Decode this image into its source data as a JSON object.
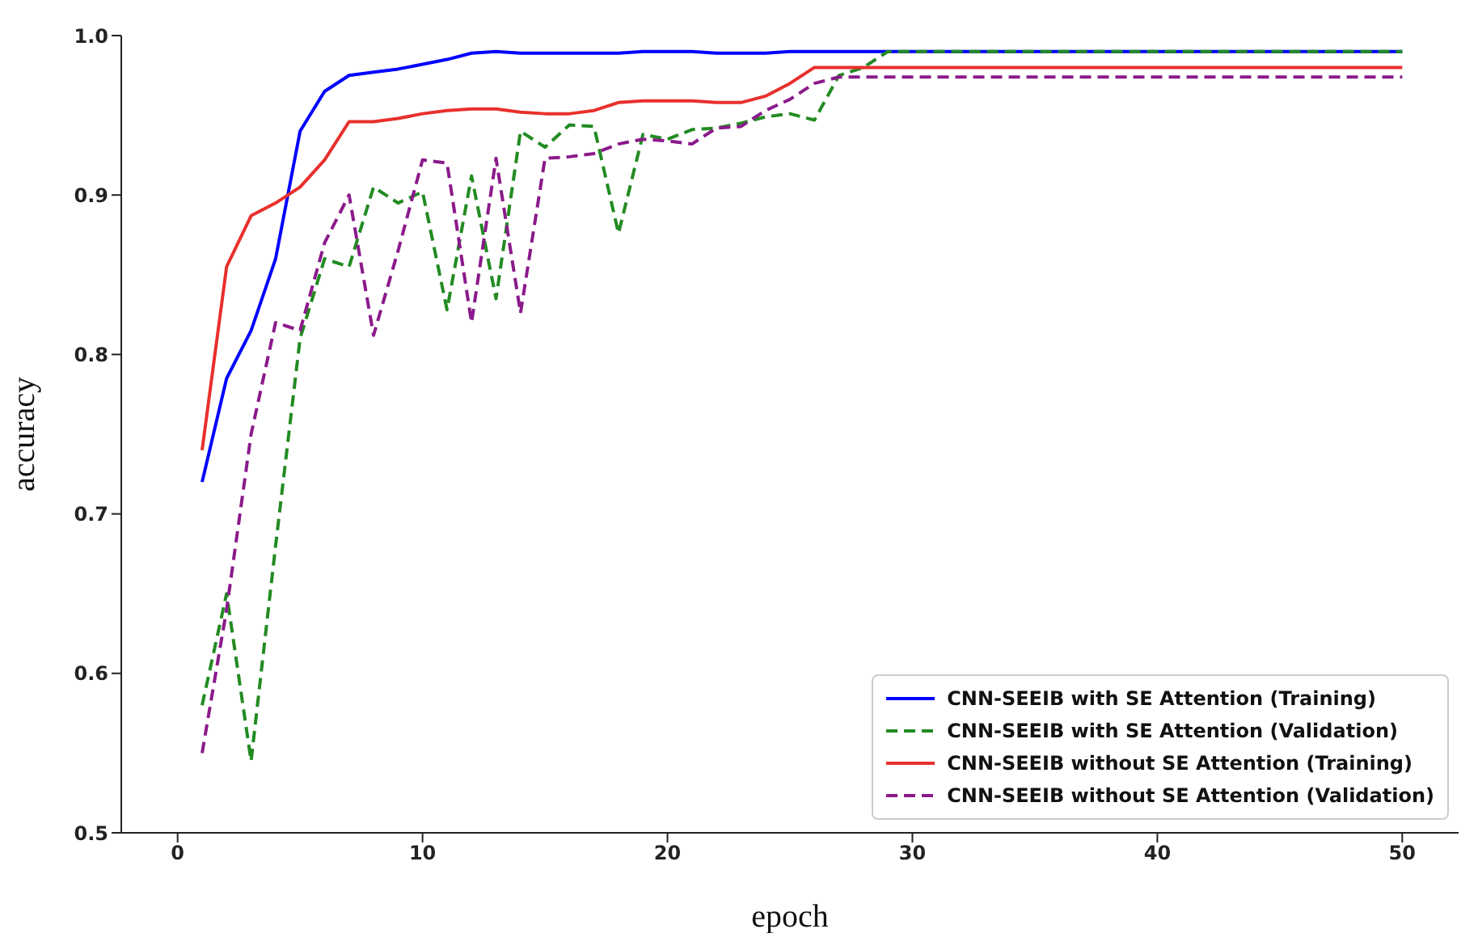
{
  "chart_data": {
    "type": "line",
    "xlabel": "epoch",
    "ylabel": "accuracy",
    "x": [
      1,
      2,
      3,
      4,
      5,
      6,
      7,
      8,
      9,
      10,
      11,
      12,
      13,
      14,
      15,
      16,
      17,
      18,
      19,
      20,
      21,
      22,
      23,
      24,
      25,
      26,
      27,
      28,
      29,
      30,
      31,
      32,
      33,
      34,
      35,
      36,
      37,
      38,
      39,
      40,
      41,
      42,
      43,
      44,
      45,
      46,
      47,
      48,
      49,
      50
    ],
    "xlim": [
      -2.3,
      52.3
    ],
    "xticks": [
      0,
      10,
      20,
      30,
      40,
      50
    ],
    "ylim": [
      0.5,
      1.0
    ],
    "yticks": [
      0.5,
      0.6,
      0.7,
      0.8,
      0.9,
      {
        "value": 1,
        "label": "1.0"
      }
    ],
    "grid": false,
    "legend": "bottom right",
    "marker": "none",
    "series": [
      {
        "name": "CNN-SEEIB with SE Attention (Training)",
        "color": "#0000ff",
        "line_style": "solid",
        "values": [
          0.72,
          0.785,
          0.815,
          0.86,
          0.94,
          0.965,
          0.975,
          0.977,
          0.979,
          0.982,
          0.985,
          0.989,
          0.99,
          0.989,
          0.989,
          0.989,
          0.989,
          0.989,
          0.99,
          0.99,
          0.99,
          0.989,
          0.989,
          0.989,
          0.99,
          0.99,
          0.99,
          0.99,
          0.99,
          0.99,
          0.99,
          0.99,
          0.99,
          0.99,
          0.99,
          0.99,
          0.99,
          0.99,
          0.99,
          0.99,
          0.99,
          0.99,
          0.99,
          0.99,
          0.99,
          0.99,
          0.99,
          0.99,
          0.99,
          0.99
        ]
      },
      {
        "name": "CNN-SEEIB with SE Attention (Validation)",
        "color": "#228b22",
        "line_style": "dashed",
        "values": [
          0.58,
          0.65,
          0.545,
          0.68,
          0.81,
          0.86,
          0.855,
          0.905,
          0.895,
          0.902,
          0.828,
          0.912,
          0.835,
          0.94,
          0.93,
          0.944,
          0.943,
          0.876,
          0.938,
          0.935,
          0.941,
          0.942,
          0.945,
          0.949,
          0.951,
          0.947,
          0.975,
          0.98,
          0.99,
          0.99,
          0.99,
          0.99,
          0.99,
          0.99,
          0.99,
          0.99,
          0.99,
          0.99,
          0.99,
          0.99,
          0.99,
          0.99,
          0.99,
          0.99,
          0.99,
          0.99,
          0.99,
          0.99,
          0.99,
          0.99
        ]
      },
      {
        "name": "CNN-SEEIB without SE Attention (Training)",
        "color": "#e8302c",
        "line_style": "solid",
        "values": [
          0.74,
          0.855,
          0.887,
          0.895,
          0.905,
          0.922,
          0.946,
          0.946,
          0.948,
          0.951,
          0.953,
          0.954,
          0.954,
          0.952,
          0.951,
          0.951,
          0.953,
          0.958,
          0.959,
          0.959,
          0.959,
          0.958,
          0.958,
          0.962,
          0.97,
          0.98,
          0.98,
          0.98,
          0.98,
          0.98,
          0.98,
          0.98,
          0.98,
          0.98,
          0.98,
          0.98,
          0.98,
          0.98,
          0.98,
          0.98,
          0.98,
          0.98,
          0.98,
          0.98,
          0.98,
          0.98,
          0.98,
          0.98,
          0.98,
          0.98
        ]
      },
      {
        "name": "CNN-SEEIB without SE Attention (Validation)",
        "color": "#8b1a8b",
        "line_style": "dashed",
        "values": [
          0.55,
          0.64,
          0.75,
          0.82,
          0.815,
          0.87,
          0.9,
          0.812,
          0.865,
          0.922,
          0.92,
          0.82,
          0.923,
          0.826,
          0.923,
          0.924,
          0.926,
          0.932,
          0.935,
          0.934,
          0.932,
          0.942,
          0.943,
          0.953,
          0.96,
          0.97,
          0.974,
          0.974,
          0.974,
          0.974,
          0.974,
          0.974,
          0.974,
          0.974,
          0.974,
          0.974,
          0.974,
          0.974,
          0.974,
          0.974,
          0.974,
          0.974,
          0.974,
          0.974,
          0.974,
          0.974,
          0.974,
          0.974,
          0.974,
          0.974
        ]
      }
    ]
  }
}
